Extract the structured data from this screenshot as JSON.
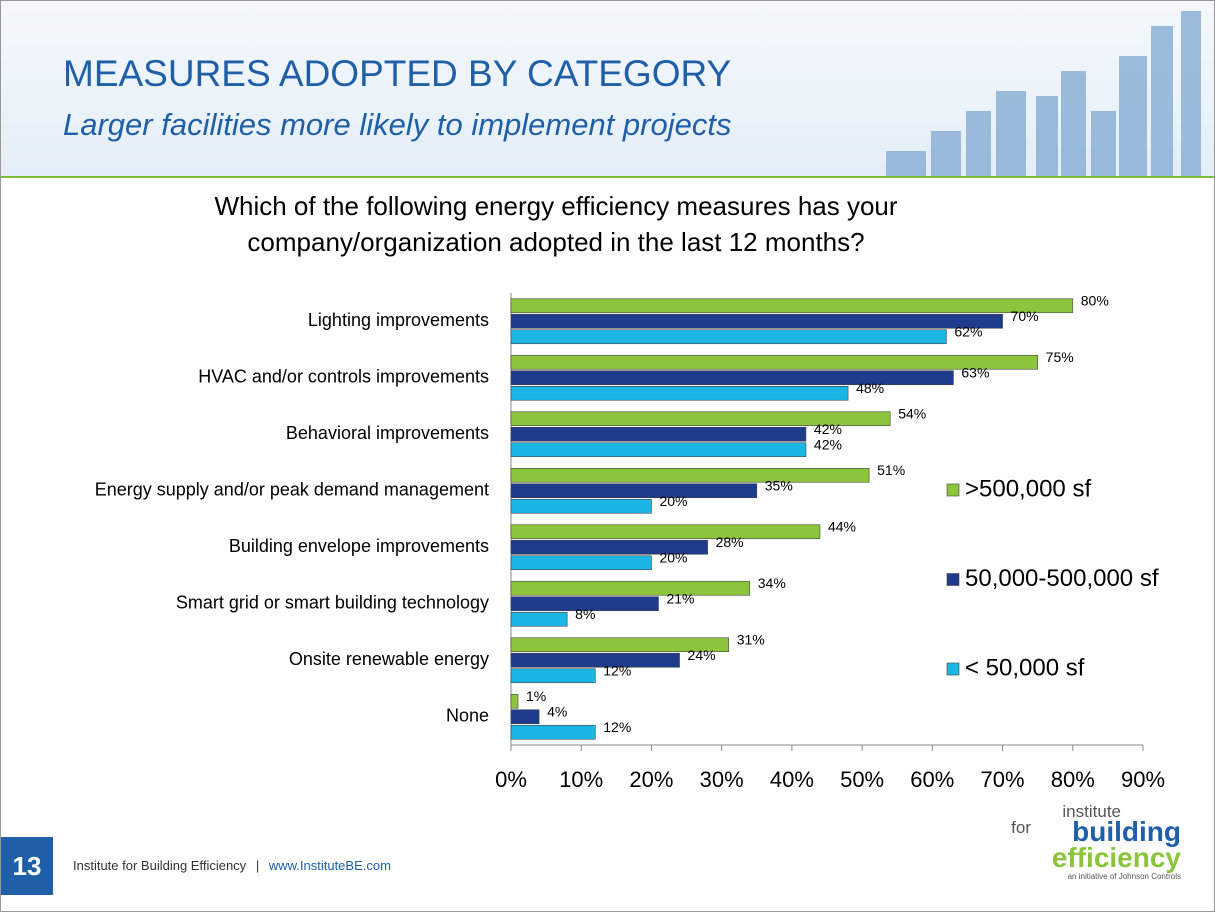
{
  "header": {
    "title": "MEASURES ADOPTED BY CATEGORY",
    "subtitle": "Larger facilities more likely to implement projects"
  },
  "footer": {
    "page_number": "13",
    "organization": "Institute for Building Efficiency",
    "separator": "|",
    "url": "www.InstituteBE.com"
  },
  "logo": {
    "line1": "institute",
    "line2": "for",
    "line3": "building",
    "line4": "efficiency",
    "tagline": "an initiative of Johnson Controls"
  },
  "chart_data": {
    "type": "bar",
    "orientation": "horizontal",
    "title": "Which of the following energy efficiency measures has your company/organization adopted in the last 12 months?",
    "categories": [
      "Lighting improvements",
      "HVAC and/or controls improvements",
      "Behavioral improvements",
      "Energy supply and/or peak demand management",
      "Building envelope  improvements",
      "Smart grid or smart building technology",
      "Onsite renewable energy",
      "None"
    ],
    "series": [
      {
        "name": ">500,000 sf",
        "color": "#8cc43c",
        "values": [
          80,
          75,
          54,
          51,
          44,
          34,
          31,
          1
        ],
        "value_labels": [
          "80%",
          "75%",
          "54%",
          "51%",
          "44%",
          "34%",
          "31%",
          "1%"
        ]
      },
      {
        "name": "50,000-500,000 sf",
        "color": "#1f3c8c",
        "values": [
          70,
          63,
          42,
          35,
          28,
          21,
          24,
          4
        ],
        "value_labels": [
          "70%",
          "63%",
          "42%",
          "35%",
          "28%",
          "21%",
          "24%",
          "4%"
        ]
      },
      {
        "name": "< 50,000 sf",
        "color": "#1cb6e4",
        "values": [
          62,
          48,
          42,
          20,
          20,
          8,
          12,
          12
        ],
        "value_labels": [
          "62%",
          "48%",
          "42%",
          "20%",
          "20%",
          "8%",
          "12%",
          "12%"
        ]
      }
    ],
    "xlim": [
      0,
      90
    ],
    "xticks": [
      {
        "value": 0,
        "label": "0%"
      },
      {
        "value": 10,
        "label": "10%"
      },
      {
        "value": 20,
        "label": "20%"
      },
      {
        "value": 30,
        "label": "30%"
      },
      {
        "value": 40,
        "label": "40%"
      },
      {
        "value": 50,
        "label": "50%"
      },
      {
        "value": 60,
        "label": "60%"
      },
      {
        "value": 70,
        "label": "70%"
      },
      {
        "value": 80,
        "label": "80%"
      },
      {
        "value": 90,
        "label": "90%"
      }
    ],
    "legend": "right"
  }
}
